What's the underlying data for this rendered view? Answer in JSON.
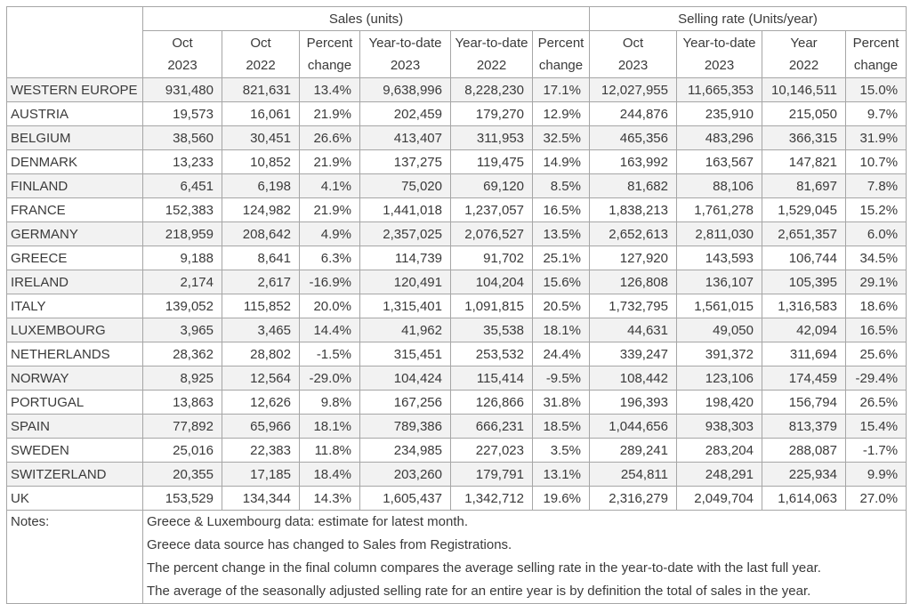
{
  "table": {
    "sections": {
      "sales": "Sales (units)",
      "selling_rate": "Selling rate (Units/year)"
    },
    "columns": [
      "Oct\n2023",
      "Oct\n2022",
      "Percent\nchange",
      "Year-to-date\n2023",
      "Year-to-date\n2022",
      "Percent\nchange",
      "Oct\n2023",
      "Year-to-date\n2023",
      "Year\n2022",
      "Percent\nchange"
    ],
    "rows": [
      {
        "country": "WESTERN EUROPE",
        "values": [
          "931,480",
          "821,631",
          "13.4%",
          "9,638,996",
          "8,228,230",
          "17.1%",
          "12,027,955",
          "11,665,353",
          "10,146,511",
          "15.0%"
        ]
      },
      {
        "country": "AUSTRIA",
        "values": [
          "19,573",
          "16,061",
          "21.9%",
          "202,459",
          "179,270",
          "12.9%",
          "244,876",
          "235,910",
          "215,050",
          "9.7%"
        ]
      },
      {
        "country": "BELGIUM",
        "values": [
          "38,560",
          "30,451",
          "26.6%",
          "413,407",
          "311,953",
          "32.5%",
          "465,356",
          "483,296",
          "366,315",
          "31.9%"
        ]
      },
      {
        "country": "DENMARK",
        "values": [
          "13,233",
          "10,852",
          "21.9%",
          "137,275",
          "119,475",
          "14.9%",
          "163,992",
          "163,567",
          "147,821",
          "10.7%"
        ]
      },
      {
        "country": "FINLAND",
        "values": [
          "6,451",
          "6,198",
          "4.1%",
          "75,020",
          "69,120",
          "8.5%",
          "81,682",
          "88,106",
          "81,697",
          "7.8%"
        ]
      },
      {
        "country": "FRANCE",
        "values": [
          "152,383",
          "124,982",
          "21.9%",
          "1,441,018",
          "1,237,057",
          "16.5%",
          "1,838,213",
          "1,761,278",
          "1,529,045",
          "15.2%"
        ]
      },
      {
        "country": "GERMANY",
        "values": [
          "218,959",
          "208,642",
          "4.9%",
          "2,357,025",
          "2,076,527",
          "13.5%",
          "2,652,613",
          "2,811,030",
          "2,651,357",
          "6.0%"
        ]
      },
      {
        "country": "GREECE",
        "values": [
          "9,188",
          "8,641",
          "6.3%",
          "114,739",
          "91,702",
          "25.1%",
          "127,920",
          "143,593",
          "106,744",
          "34.5%"
        ]
      },
      {
        "country": "IRELAND",
        "values": [
          "2,174",
          "2,617",
          "-16.9%",
          "120,491",
          "104,204",
          "15.6%",
          "126,808",
          "136,107",
          "105,395",
          "29.1%"
        ]
      },
      {
        "country": "ITALY",
        "values": [
          "139,052",
          "115,852",
          "20.0%",
          "1,315,401",
          "1,091,815",
          "20.5%",
          "1,732,795",
          "1,561,015",
          "1,316,583",
          "18.6%"
        ]
      },
      {
        "country": "LUXEMBOURG",
        "values": [
          "3,965",
          "3,465",
          "14.4%",
          "41,962",
          "35,538",
          "18.1%",
          "44,631",
          "49,050",
          "42,094",
          "16.5%"
        ]
      },
      {
        "country": "NETHERLANDS",
        "values": [
          "28,362",
          "28,802",
          "-1.5%",
          "315,451",
          "253,532",
          "24.4%",
          "339,247",
          "391,372",
          "311,694",
          "25.6%"
        ]
      },
      {
        "country": "NORWAY",
        "values": [
          "8,925",
          "12,564",
          "-29.0%",
          "104,424",
          "115,414",
          "-9.5%",
          "108,442",
          "123,106",
          "174,459",
          "-29.4%"
        ]
      },
      {
        "country": "PORTUGAL",
        "values": [
          "13,863",
          "12,626",
          "9.8%",
          "167,256",
          "126,866",
          "31.8%",
          "196,393",
          "198,420",
          "156,794",
          "26.5%"
        ]
      },
      {
        "country": "SPAIN",
        "values": [
          "77,892",
          "65,966",
          "18.1%",
          "789,386",
          "666,231",
          "18.5%",
          "1,044,656",
          "938,303",
          "813,379",
          "15.4%"
        ]
      },
      {
        "country": "SWEDEN",
        "values": [
          "25,016",
          "22,383",
          "11.8%",
          "234,985",
          "227,023",
          "3.5%",
          "289,241",
          "283,204",
          "288,087",
          "-1.7%"
        ]
      },
      {
        "country": "SWITZERLAND",
        "values": [
          "20,355",
          "17,185",
          "18.4%",
          "203,260",
          "179,791",
          "13.1%",
          "254,811",
          "248,291",
          "225,934",
          "9.9%"
        ]
      },
      {
        "country": "UK",
        "values": [
          "153,529",
          "134,344",
          "14.3%",
          "1,605,437",
          "1,342,712",
          "19.6%",
          "2,316,279",
          "2,049,704",
          "1,614,063",
          "27.0%"
        ]
      }
    ],
    "notes_label": "Notes:",
    "notes": [
      "Greece & Luxembourg data: estimate for latest month.",
      "Greece data source has changed to Sales from Registrations.",
      "The percent change in the final column compares the average selling rate in the year-to-date with the last full year.",
      "The average of the seasonally adjusted selling rate for an entire year is by definition the total of sales in the year."
    ],
    "colors": {
      "stripe": "#f2f2f2",
      "border": "#a6a6a6",
      "text": "#3a3a3a"
    }
  }
}
